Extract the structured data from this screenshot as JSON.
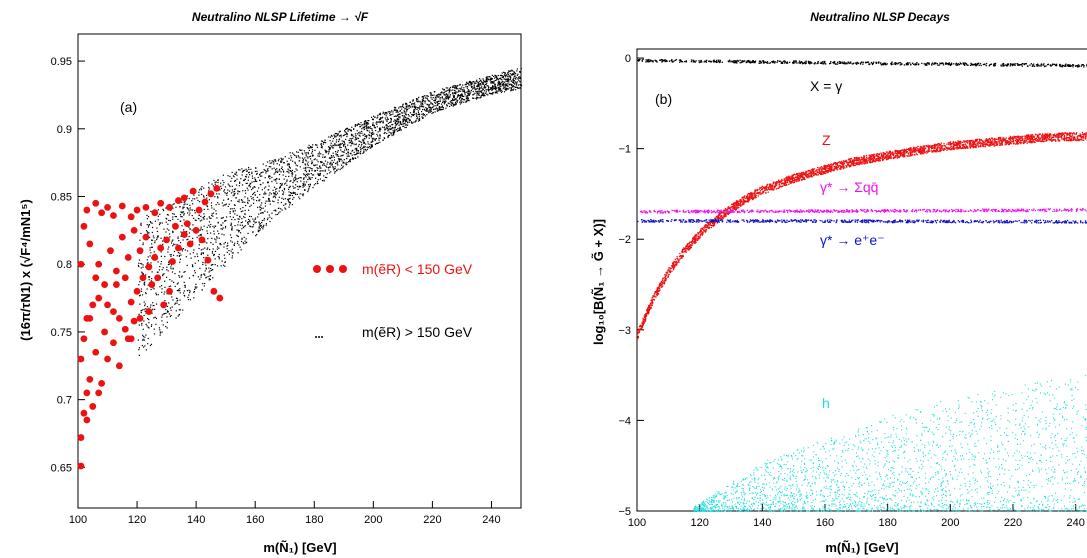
{
  "chart_data": [
    {
      "id": "a",
      "type": "scatter",
      "title": "Neutralino NLSP Lifetime → √F",
      "panel_label": "(a)",
      "xlabel": "m(Ñ₁) [GeV]",
      "ylabel": "(16π/τN1) x (√F⁴/mN1⁵)",
      "xlim": [
        100,
        250
      ],
      "ylim": [
        0.62,
        0.97
      ],
      "xticks": [
        "100",
        "120",
        "140",
        "160",
        "180",
        "200",
        "220",
        "240"
      ],
      "yticks": [
        "0.65",
        "0.7",
        "0.75",
        "0.8",
        "0.85",
        "0.9",
        "0.95"
      ],
      "series": [
        {
          "name": "m(ẽ_R) < 150 GeV",
          "legend_text": "m(ẽR) < 150 GeV",
          "color": "#ee1111",
          "marker": "large-dot",
          "points": [
            [
              101,
              0.651
            ],
            [
              101,
              0.672
            ],
            [
              102,
              0.69
            ],
            [
              103,
              0.705
            ],
            [
              104,
              0.715
            ],
            [
              101,
              0.73
            ],
            [
              102,
              0.745
            ],
            [
              103,
              0.76
            ],
            [
              105,
              0.77
            ],
            [
              106,
              0.79
            ],
            [
              101,
              0.8
            ],
            [
              104,
              0.815
            ],
            [
              102,
              0.828
            ],
            [
              103,
              0.84
            ],
            [
              106,
              0.845
            ],
            [
              108,
              0.838
            ],
            [
              110,
              0.842
            ],
            [
              112,
              0.836
            ],
            [
              115,
              0.843
            ],
            [
              118,
              0.835
            ],
            [
              120,
              0.84
            ],
            [
              123,
              0.842
            ],
            [
              126,
              0.838
            ],
            [
              128,
              0.845
            ],
            [
              131,
              0.842
            ],
            [
              134,
              0.847
            ],
            [
              136,
              0.849
            ],
            [
              139,
              0.854
            ],
            [
              108,
              0.712
            ],
            [
              110,
              0.73
            ],
            [
              112,
              0.742
            ],
            [
              114,
              0.76
            ],
            [
              116,
              0.752
            ],
            [
              118,
              0.772
            ],
            [
              120,
              0.78
            ],
            [
              122,
              0.79
            ],
            [
              124,
              0.798
            ],
            [
              126,
              0.805
            ],
            [
              128,
              0.812
            ],
            [
              130,
              0.818
            ],
            [
              132,
              0.802
            ],
            [
              134,
              0.812
            ],
            [
              136,
              0.822
            ],
            [
              138,
              0.815
            ],
            [
              140,
              0.825
            ],
            [
              142,
              0.818
            ],
            [
              144,
              0.803
            ],
            [
              146,
              0.78
            ],
            [
              148,
              0.775
            ],
            [
              107,
              0.8
            ],
            [
              109,
              0.785
            ],
            [
              111,
              0.81
            ],
            [
              113,
              0.795
            ],
            [
              115,
              0.82
            ],
            [
              117,
              0.805
            ],
            [
              119,
              0.825
            ],
            [
              121,
              0.81
            ],
            [
              123,
              0.82
            ],
            [
              125,
              0.785
            ],
            [
              127,
              0.79
            ],
            [
              129,
              0.77
            ],
            [
              131,
              0.78
            ],
            [
              106,
              0.735
            ],
            [
              109,
              0.75
            ],
            [
              112,
              0.765
            ],
            [
              114,
              0.725
            ],
            [
              117,
              0.745
            ],
            [
              119,
              0.758
            ],
            [
              104,
              0.76
            ],
            [
              107,
              0.775
            ],
            [
              110,
              0.77
            ],
            [
              113,
              0.785
            ],
            [
              116,
              0.79
            ],
            [
              118,
              0.745
            ],
            [
              121,
              0.76
            ],
            [
              124,
              0.765
            ],
            [
              105,
              0.695
            ],
            [
              107,
              0.705
            ],
            [
              103,
              0.685
            ],
            [
              141,
              0.84
            ],
            [
              143,
              0.846
            ],
            [
              145,
              0.852
            ],
            [
              147,
              0.856
            ],
            [
              137,
              0.83
            ],
            [
              133,
              0.828
            ]
          ]
        },
        {
          "name": "m(ẽ_R) > 150 GeV",
          "legend_text": "m(ẽR) > 150 GeV",
          "color": "#000000",
          "marker": "small-dot",
          "bands": [
            {
              "x": [
                120,
                135,
                150,
                165,
                180,
                200,
                220,
                240,
                250
              ],
              "lo": [
                0.73,
                0.765,
                0.8,
                0.832,
                0.857,
                0.888,
                0.912,
                0.926,
                0.93
              ],
              "hi": [
                0.835,
                0.85,
                0.868,
                0.877,
                0.89,
                0.91,
                0.928,
                0.94,
                0.946
              ]
            }
          ],
          "count": 3200
        }
      ]
    },
    {
      "id": "b",
      "type": "scatter",
      "title": "Neutralino NLSP Decays",
      "panel_label": "(b)",
      "xlabel": "m(Ñ₁) [GeV]",
      "ylabel": "log₁₀[B(Ñ₁ → G̃ + X)]",
      "xlim": [
        100,
        250
      ],
      "ylim": [
        -5,
        0.1
      ],
      "xticks": [
        "100",
        "120",
        "140",
        "160",
        "180",
        "200",
        "220",
        "240"
      ],
      "yticks": [
        "0",
        "−1",
        "−2",
        "−3",
        "−4",
        "−5"
      ],
      "series": [
        {
          "name": "X = γ",
          "label": "X = γ",
          "color": "#000000",
          "x": [
            100,
            125,
            150,
            175,
            200,
            225,
            250
          ],
          "y": [
            -0.02,
            -0.03,
            -0.04,
            -0.05,
            -0.06,
            -0.07,
            -0.08
          ],
          "width": 0.03
        },
        {
          "name": "Z",
          "label": "Z",
          "color": "#ee1111",
          "x": [
            100,
            105,
            110,
            115,
            120,
            125,
            130,
            135,
            140,
            150,
            160,
            170,
            180,
            190,
            200,
            210,
            220,
            230,
            240,
            250
          ],
          "y": [
            -3.05,
            -2.65,
            -2.35,
            -2.12,
            -1.93,
            -1.78,
            -1.65,
            -1.54,
            -1.45,
            -1.32,
            -1.22,
            -1.13,
            -1.07,
            -1.01,
            -0.96,
            -0.93,
            -0.9,
            -0.87,
            -0.86,
            -0.85
          ],
          "width": 0.09
        },
        {
          "name": "γ* → Σqq̄",
          "label": "γ* → Σqq̄",
          "color": "#ee11ee",
          "x": [
            100,
            250
          ],
          "y": [
            -1.69,
            -1.67
          ],
          "width": 0.03
        },
        {
          "name": "γ* → e⁺e⁻",
          "label": "γ* → e⁺e⁻",
          "color": "#1111cc",
          "x": [
            100,
            250
          ],
          "y": [
            -1.79,
            -1.8
          ],
          "width": 0.03
        },
        {
          "name": "h",
          "label": "h",
          "color": "#22dddd",
          "bands": [
            {
              "x": [
                118,
                140,
                160,
                180,
                200,
                220,
                240,
                250
              ],
              "lo": [
                -5,
                -5,
                -5,
                -5,
                -5,
                -5,
                -5,
                -5
              ],
              "hi": [
                -4.95,
                -4.45,
                -4.2,
                -3.95,
                -3.75,
                -3.6,
                -3.5,
                -3.45
              ]
            }
          ],
          "count": 2600
        }
      ]
    }
  ]
}
